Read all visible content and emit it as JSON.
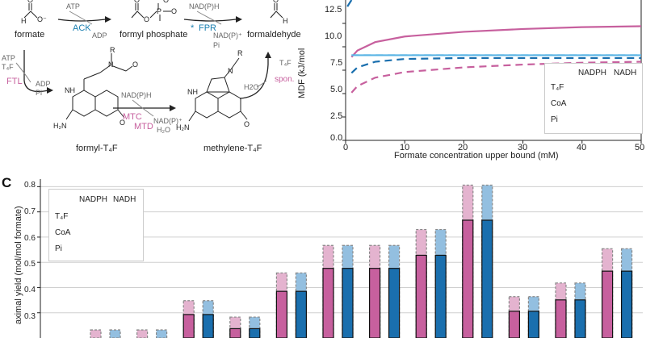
{
  "pathway": {
    "formate": "formate",
    "formyl_phosphate": "formyl phosphate",
    "formaldehyde": "formaldehyde",
    "formyl_t4f": "formyl-T₄F",
    "methylene_t4f": "methylene-T₄F",
    "atp1": "ATP",
    "ack": "ACK",
    "adp1": "ADP",
    "nadph_top": "NAD(P)H",
    "fpr": "FPR",
    "fpr_star": "*",
    "nadp_top": "NAD(P)⁺",
    "pi_top": "Pi",
    "atp2": "ATP",
    "t4f_in": "T₄F",
    "ftl": "FTL",
    "adp2": "ADP",
    "pi2": "Pi",
    "nadph_mid": "NAD(P)H",
    "mtc": "MTC",
    "mtd": "MTD",
    "nadp_mid": "NAD(P)⁺",
    "h2o_mid": "H₂O",
    "h2o_spon": "H2O",
    "spon": "spon.",
    "t4f_out": "T₄F",
    "atom_O": "O",
    "atom_P": "P",
    "atom_N": "N",
    "atom_NH": "NH",
    "atom_H": "H",
    "atom_R": "R",
    "atom_H2N": "H₂N",
    "atom_Ominus": "O⁻",
    "atom_Ominus2": "O⁻"
  },
  "panel_b": {
    "ylabel": "MDF (kJ/mol",
    "xlabel": "Formate concentration upper bound (mM)",
    "yticks": [
      "12.5",
      "10.0",
      "7.5",
      "5.0",
      "2.5",
      "0.0"
    ],
    "xticks": [
      "0",
      "10",
      "20",
      "30",
      "40",
      "50"
    ],
    "legend_headers": [
      "NADPH",
      "NADH"
    ],
    "legend_rows": [
      "T₄F",
      "CoA",
      "Pi"
    ],
    "colors": {
      "t4f": "#c7609e",
      "coa": "#5ab4e5",
      "pi": "#1a6fae"
    }
  },
  "panel_c": {
    "letter": "C",
    "ylabel": "aximal yield (mol/mol formate)",
    "legend_headers": [
      "NADPH",
      "NADH"
    ],
    "legend_rows": [
      "T₄F",
      "CoA",
      "Pi"
    ],
    "yticks": [
      "0.8",
      "0.7",
      "0.6",
      "0.5",
      "0.4",
      "0.3"
    ],
    "colors": {
      "pink": "#c7609e",
      "pink_light": "#e4b3cf",
      "blue": "#1a6fae",
      "blue_light": "#93bfe0"
    }
  },
  "chart_data": [
    {
      "type": "line",
      "xlabel": "Formate concentration upper bound (mM)",
      "ylabel": "MDF (kJ/mol",
      "xlim": [
        0,
        50
      ],
      "ylim": [
        0,
        15
      ],
      "series": [
        {
          "name": "T₄F NADPH",
          "x": [
            1,
            2,
            5,
            10,
            20,
            30,
            40,
            50
          ],
          "values": [
            8.9,
            9.6,
            10.5,
            11.1,
            11.6,
            11.9,
            12.1,
            12.2
          ]
        },
        {
          "name": "T₄F NADH",
          "x": [
            1,
            2,
            5,
            10,
            20,
            30,
            40,
            50
          ],
          "values": [
            5.1,
            5.8,
            6.7,
            7.3,
            7.8,
            8.1,
            8.3,
            8.4
          ]
        },
        {
          "name": "CoA NADPH",
          "x": [
            1,
            2,
            5,
            10,
            20,
            30,
            40,
            50
          ],
          "values": [
            9.1,
            9.1,
            9.1,
            9.1,
            9.1,
            9.1,
            9.1,
            9.1
          ]
        },
        {
          "name": "CoA NADH",
          "x": [
            1,
            2,
            5,
            10,
            20,
            30,
            40,
            50
          ],
          "values": [
            9.1,
            9.1,
            9.1,
            9.1,
            9.1,
            9.1,
            9.1,
            9.1
          ]
        },
        {
          "name": "Pi NADPH",
          "x": [
            0.3,
            0.6,
            1
          ],
          "values": [
            14.3,
            14.6,
            15.0
          ]
        },
        {
          "name": "Pi NADH",
          "x": [
            1,
            2,
            5,
            10,
            20,
            30,
            40,
            50
          ],
          "values": [
            7.2,
            7.8,
            8.4,
            8.7,
            8.8,
            8.8,
            8.8,
            8.8
          ]
        }
      ]
    },
    {
      "type": "bar",
      "ylabel": "aximal yield (mol/mol formate)",
      "ylim": [
        0.2,
        0.83
      ],
      "groups": [
        {
          "pink_solid": null,
          "pink_dash": 0.232,
          "blue_solid": null,
          "blue_dash": 0.232
        },
        {
          "pink_solid": null,
          "pink_dash": 0.232,
          "blue_solid": null,
          "blue_dash": 0.232
        },
        {
          "pink_solid": 0.293,
          "pink_dash": 0.348,
          "blue_solid": 0.293,
          "blue_dash": 0.348
        },
        {
          "pink_solid": 0.237,
          "pink_dash": 0.283,
          "blue_solid": 0.237,
          "blue_dash": 0.283
        },
        {
          "pink_solid": 0.385,
          "pink_dash": 0.458,
          "blue_solid": 0.385,
          "blue_dash": 0.458
        },
        {
          "pink_solid": 0.476,
          "pink_dash": 0.567,
          "blue_solid": 0.476,
          "blue_dash": 0.567
        },
        {
          "pink_solid": 0.476,
          "pink_dash": 0.567,
          "blue_solid": 0.476,
          "blue_dash": 0.567
        },
        {
          "pink_solid": 0.528,
          "pink_dash": 0.63,
          "blue_solid": 0.528,
          "blue_dash": 0.63
        },
        {
          "pink_solid": 0.667,
          "pink_dash": 0.806,
          "blue_solid": 0.667,
          "blue_dash": 0.806
        },
        {
          "pink_solid": 0.306,
          "pink_dash": 0.364,
          "blue_solid": 0.306,
          "blue_dash": 0.364
        },
        {
          "pink_solid": 0.351,
          "pink_dash": 0.418,
          "blue_solid": 0.351,
          "blue_dash": 0.418
        },
        {
          "pink_solid": 0.465,
          "pink_dash": 0.554,
          "blue_solid": 0.465,
          "blue_dash": 0.554
        }
      ]
    }
  ]
}
